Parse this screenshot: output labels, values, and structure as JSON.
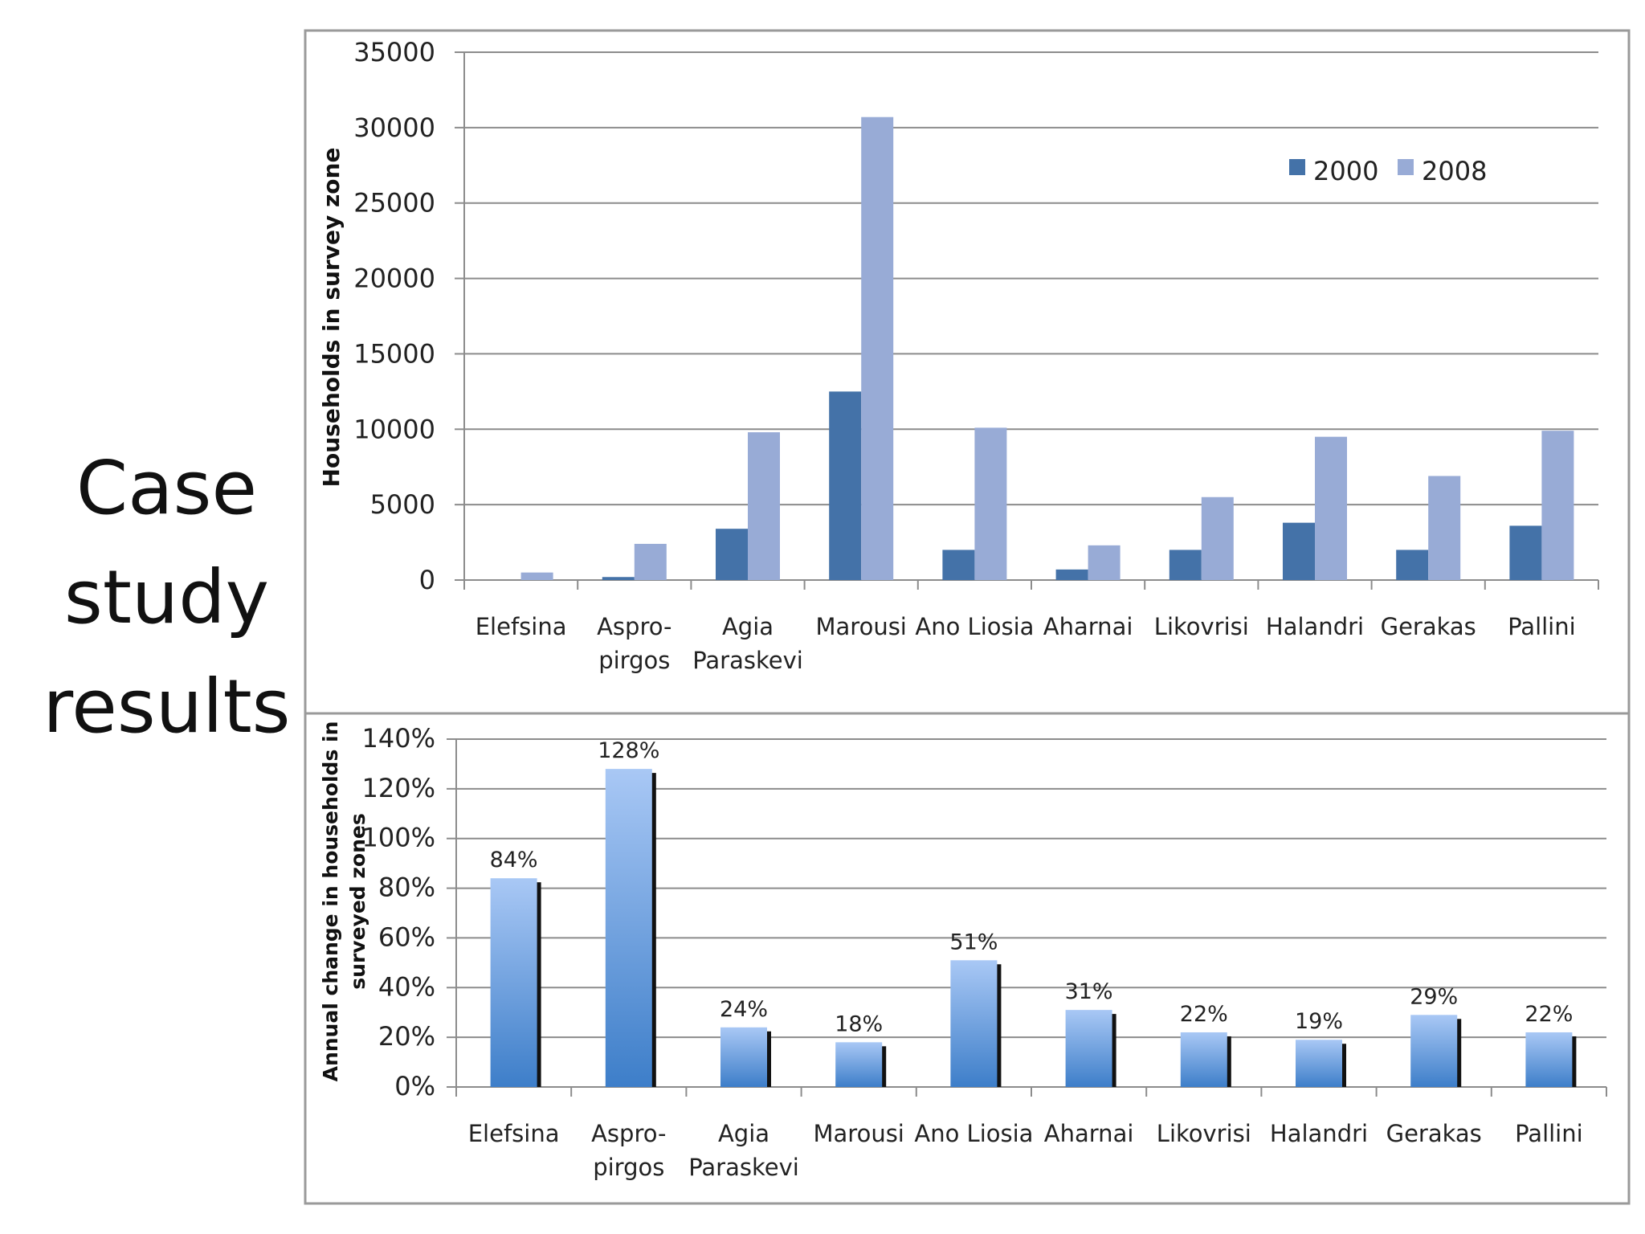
{
  "slide": {
    "title_lines": [
      "Case",
      "study",
      "results"
    ]
  },
  "chart_data": [
    {
      "type": "bar",
      "title": "",
      "ylabel": "Households in survey zone",
      "xlabel": "",
      "categories": [
        "Elefsina",
        "Aspro-\npirgos",
        "Agia\nParaskevi",
        "Marousi",
        "Ano Liosia",
        "Aharnai",
        "Likovrisi",
        "Halandri",
        "Gerakas",
        "Pallini"
      ],
      "series": [
        {
          "name": "2000",
          "values": [
            0,
            200,
            3400,
            12500,
            2000,
            700,
            2000,
            3800,
            2000,
            3600
          ]
        },
        {
          "name": "2008",
          "values": [
            500,
            2400,
            9800,
            30700,
            10100,
            2300,
            5500,
            9500,
            6900,
            9900
          ]
        }
      ],
      "ylim": [
        0,
        35000
      ],
      "yticks": [
        "0",
        "5000",
        "10000",
        "15000",
        "20000",
        "25000",
        "30000",
        "35000"
      ],
      "grid": true,
      "legend": "top-right",
      "colors": {
        "2000": "#4472a8",
        "2008": "#98abd6"
      }
    },
    {
      "type": "bar",
      "title": "",
      "ylabel": "Annual change in households in\nsurveyed zones",
      "xlabel": "",
      "categories": [
        "Elefsina",
        "Aspro-\npirgos",
        "Agia\nParaskevi",
        "Marousi",
        "Ano Liosia",
        "Aharnai",
        "Likovrisi",
        "Halandri",
        "Gerakas",
        "Pallini"
      ],
      "values": [
        84,
        128,
        24,
        18,
        51,
        31,
        22,
        19,
        29,
        22
      ],
      "data_labels": [
        "84%",
        "128%",
        "24%",
        "18%",
        "51%",
        "31%",
        "22%",
        "19%",
        "29%",
        "22%"
      ],
      "ylim": [
        0,
        140
      ],
      "yticks": [
        "0%",
        "20%",
        "40%",
        "60%",
        "80%",
        "100%",
        "120%",
        "140%"
      ],
      "grid": true,
      "legend": "none",
      "colors": {
        "bar_top": "#a9c8f5",
        "bar_bottom": "#3d7ec9",
        "shadow": "#111111"
      }
    }
  ]
}
